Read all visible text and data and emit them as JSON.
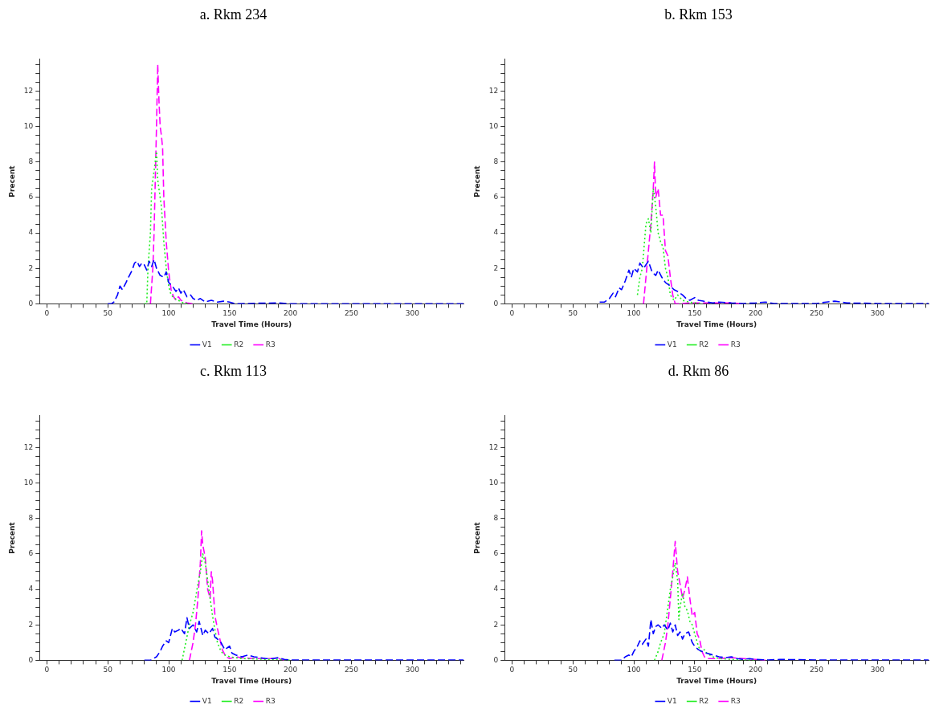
{
  "chart_data": [
    {
      "type": "line",
      "title": "a. Rkm 234",
      "xlabel": "Travel Time (Hours)",
      "ylabel": "Precent",
      "xlim": [
        -6,
        342
      ],
      "ylim": [
        0,
        13.8
      ],
      "xticks": [
        0,
        {
          "value": 10,
          "label": null
        },
        {
          "value": 20,
          "label": null
        },
        {
          "value": 30,
          "label": null
        },
        {
          "value": 40,
          "label": null
        },
        50,
        {
          "value": 60,
          "label": null
        },
        {
          "value": 70,
          "label": null
        },
        {
          "value": 80,
          "label": null
        },
        {
          "value": 90,
          "label": null
        },
        100,
        {
          "value": 110,
          "label": null
        },
        {
          "value": 120,
          "label": null
        },
        {
          "value": 130,
          "label": null
        },
        {
          "value": 140,
          "label": null
        },
        150,
        {
          "value": 160,
          "label": null
        },
        {
          "value": 170,
          "label": null
        },
        {
          "value": 180,
          "label": null
        },
        {
          "value": 190,
          "label": null
        },
        200,
        {
          "value": 210,
          "label": null
        },
        {
          "value": 220,
          "label": null
        },
        {
          "value": 230,
          "label": null
        },
        {
          "value": 240,
          "label": null
        },
        250,
        {
          "value": 260,
          "label": null
        },
        {
          "value": 270,
          "label": null
        },
        {
          "value": 280,
          "label": null
        },
        {
          "value": 290,
          "label": null
        },
        300,
        {
          "value": 310,
          "label": null
        },
        {
          "value": 320,
          "label": null
        },
        {
          "value": 330,
          "label": null
        },
        {
          "value": 340,
          "label": null
        }
      ],
      "yticks": [
        0,
        {
          "value": 0.5,
          "label": null
        },
        {
          "value": 1,
          "label": null
        },
        {
          "value": 1.5,
          "label": null
        },
        2,
        {
          "value": 2.5,
          "label": null
        },
        {
          "value": 3,
          "label": null
        },
        {
          "value": 3.5,
          "label": null
        },
        4,
        {
          "value": 4.5,
          "label": null
        },
        {
          "value": 5,
          "label": null
        },
        {
          "value": 5.5,
          "label": null
        },
        6,
        {
          "value": 6.5,
          "label": null
        },
        {
          "value": 7,
          "label": null
        },
        {
          "value": 7.5,
          "label": null
        },
        8,
        {
          "value": 8.5,
          "label": null
        },
        {
          "value": 9,
          "label": null
        },
        {
          "value": 9.5,
          "label": null
        },
        10,
        {
          "value": 10.5,
          "label": null
        },
        {
          "value": 11,
          "label": null
        },
        {
          "value": 11.5,
          "label": null
        },
        12,
        {
          "value": 12.5,
          "label": null
        },
        {
          "value": 13,
          "label": null
        },
        {
          "value": 13.5,
          "label": null
        }
      ],
      "legend": "bottom",
      "grid": false,
      "series": [
        {
          "name": "V1",
          "color": "#0000ff",
          "line_style": "dashed",
          "x": [
            50,
            53,
            55,
            58,
            60,
            62,
            65,
            67,
            70,
            72,
            74,
            76,
            78,
            80,
            82,
            84,
            86,
            88,
            90,
            93,
            96,
            98,
            100,
            103,
            106,
            108,
            110,
            112,
            115,
            118,
            120,
            123,
            126,
            130,
            135,
            140,
            145,
            150,
            155,
            170,
            190,
            200,
            250,
            300,
            342
          ],
          "values": [
            0,
            0,
            0.1,
            0.5,
            1.0,
            0.8,
            1.2,
            1.5,
            1.9,
            2.3,
            2.4,
            2.1,
            2.3,
            2.2,
            1.9,
            2.4,
            2.1,
            2.5,
            2.0,
            1.6,
            1.5,
            1.8,
            1.2,
            1.0,
            0.7,
            0.9,
            0.6,
            0.8,
            0.4,
            0.5,
            0.3,
            0.2,
            0.3,
            0.1,
            0.2,
            0.1,
            0.15,
            0.1,
            0,
            0.03,
            0.05,
            0,
            0,
            0,
            0
          ]
        },
        {
          "name": "R2",
          "color": "#22ee22",
          "line_style": "dotted",
          "x": [
            80,
            82,
            83,
            85,
            86,
            88,
            90,
            91,
            92,
            94,
            96,
            98,
            100,
            102,
            105,
            108,
            110,
            113,
            116
          ],
          "values": [
            0,
            0,
            2.0,
            4,
            6.5,
            7.5,
            8.6,
            7,
            6.5,
            5.5,
            3.5,
            2,
            1.0,
            0.5,
            0.3,
            0.2,
            0.1,
            0.05,
            0
          ]
        },
        {
          "name": "R3",
          "color": "#ff00ff",
          "line_style": "dashed",
          "x": [
            85,
            86,
            87,
            88,
            89,
            90,
            91,
            92,
            93,
            94,
            95,
            96,
            98,
            100,
            102,
            104,
            106,
            108,
            110,
            115,
            120
          ],
          "values": [
            0,
            1,
            2,
            4,
            7,
            10,
            13.5,
            11.5,
            10,
            9.5,
            8.8,
            6,
            3.5,
            1.8,
            0.8,
            0.4,
            0.2,
            0.4,
            0.2,
            0.05,
            0
          ]
        }
      ]
    },
    {
      "type": "line",
      "title": "b. Rkm 153",
      "xlabel": "Travel Time (Hours)",
      "ylabel": "Precent",
      "xlim": [
        -6,
        342
      ],
      "ylim": [
        0,
        13.8
      ],
      "xticks": [
        0,
        {
          "value": 10,
          "label": null
        },
        {
          "value": 20,
          "label": null
        },
        {
          "value": 30,
          "label": null
        },
        {
          "value": 40,
          "label": null
        },
        50,
        {
          "value": 60,
          "label": null
        },
        {
          "value": 70,
          "label": null
        },
        {
          "value": 80,
          "label": null
        },
        {
          "value": 90,
          "label": null
        },
        100,
        {
          "value": 110,
          "label": null
        },
        {
          "value": 120,
          "label": null
        },
        {
          "value": 130,
          "label": null
        },
        {
          "value": 140,
          "label": null
        },
        150,
        {
          "value": 160,
          "label": null
        },
        {
          "value": 170,
          "label": null
        },
        {
          "value": 180,
          "label": null
        },
        {
          "value": 190,
          "label": null
        },
        200,
        {
          "value": 210,
          "label": null
        },
        {
          "value": 220,
          "label": null
        },
        {
          "value": 230,
          "label": null
        },
        {
          "value": 240,
          "label": null
        },
        250,
        {
          "value": 260,
          "label": null
        },
        {
          "value": 270,
          "label": null
        },
        {
          "value": 280,
          "label": null
        },
        {
          "value": 290,
          "label": null
        },
        300,
        {
          "value": 310,
          "label": null
        },
        {
          "value": 320,
          "label": null
        },
        {
          "value": 330,
          "label": null
        },
        {
          "value": 340,
          "label": null
        }
      ],
      "yticks": [
        0,
        {
          "value": 0.5,
          "label": null
        },
        {
          "value": 1,
          "label": null
        },
        {
          "value": 1.5,
          "label": null
        },
        2,
        {
          "value": 2.5,
          "label": null
        },
        {
          "value": 3,
          "label": null
        },
        {
          "value": 3.5,
          "label": null
        },
        4,
        {
          "value": 4.5,
          "label": null
        },
        {
          "value": 5,
          "label": null
        },
        {
          "value": 5.5,
          "label": null
        },
        6,
        {
          "value": 6.5,
          "label": null
        },
        {
          "value": 7,
          "label": null
        },
        {
          "value": 7.5,
          "label": null
        },
        8,
        {
          "value": 8.5,
          "label": null
        },
        {
          "value": 9,
          "label": null
        },
        {
          "value": 9.5,
          "label": null
        },
        10,
        {
          "value": 10.5,
          "label": null
        },
        {
          "value": 11,
          "label": null
        },
        {
          "value": 11.5,
          "label": null
        },
        12,
        {
          "value": 12.5,
          "label": null
        },
        {
          "value": 13,
          "label": null
        },
        {
          "value": 13.5,
          "label": null
        }
      ],
      "legend": "bottom",
      "grid": false,
      "series": [
        {
          "name": "V1",
          "color": "#0000ff",
          "line_style": "dashed",
          "x": [
            72,
            76,
            80,
            83,
            85,
            88,
            90,
            93,
            96,
            98,
            100,
            103,
            105,
            108,
            110,
            112,
            115,
            118,
            120,
            123,
            126,
            130,
            133,
            136,
            140,
            143,
            146,
            150,
            153,
            157,
            160,
            165,
            170,
            180,
            190,
            200,
            208,
            215,
            250,
            258,
            265,
            275,
            300,
            342
          ],
          "values": [
            0.1,
            0.1,
            0.3,
            0.6,
            0.4,
            0.9,
            0.8,
            1.3,
            1.9,
            1.5,
            2.0,
            1.8,
            2.3,
            2.0,
            2.2,
            2.4,
            1.8,
            1.6,
            1.9,
            1.5,
            1.2,
            1.0,
            0.8,
            0.7,
            0.5,
            0.3,
            0.2,
            0.35,
            0.2,
            0.15,
            0.1,
            0.05,
            0.1,
            0.05,
            0.02,
            0.05,
            0.1,
            0.02,
            0.02,
            0.1,
            0.15,
            0.05,
            0.02,
            0.02
          ]
        },
        {
          "name": "R2",
          "color": "#22ee22",
          "line_style": "dotted",
          "x": [
            103,
            105,
            107,
            110,
            112,
            114,
            116,
            118,
            120,
            122,
            124,
            126,
            128,
            130,
            133,
            136,
            140,
            145,
            150,
            155
          ],
          "values": [
            0.5,
            1.5,
            2,
            4.5,
            4.8,
            4,
            6.5,
            5.5,
            4,
            3.5,
            3.2,
            2.0,
            1.5,
            0.5,
            0.2,
            0.5,
            0.2,
            0.1,
            0.05,
            0
          ]
        },
        {
          "name": "R3",
          "color": "#ff00ff",
          "line_style": "dashed",
          "x": [
            108,
            110,
            112,
            114,
            116,
            117,
            118,
            120,
            122,
            124,
            126,
            128,
            130,
            132,
            134,
            138,
            145,
            160,
            180,
            188
          ],
          "values": [
            0,
            1.5,
            3,
            4.5,
            6.5,
            8,
            6,
            6.5,
            5,
            5,
            3,
            2.7,
            1.5,
            0.5,
            0,
            0,
            0.05,
            0.05,
            0.05,
            0
          ]
        }
      ]
    },
    {
      "type": "line",
      "title": "c. Rkm 113",
      "xlabel": "Travel Time (Hours)",
      "ylabel": "Precent",
      "xlim": [
        -6,
        342
      ],
      "ylim": [
        0,
        13.8
      ],
      "xticks": [
        0,
        {
          "value": 10,
          "label": null
        },
        {
          "value": 20,
          "label": null
        },
        {
          "value": 30,
          "label": null
        },
        {
          "value": 40,
          "label": null
        },
        50,
        {
          "value": 60,
          "label": null
        },
        {
          "value": 70,
          "label": null
        },
        {
          "value": 80,
          "label": null
        },
        {
          "value": 90,
          "label": null
        },
        100,
        {
          "value": 110,
          "label": null
        },
        {
          "value": 120,
          "label": null
        },
        {
          "value": 130,
          "label": null
        },
        {
          "value": 140,
          "label": null
        },
        150,
        {
          "value": 160,
          "label": null
        },
        {
          "value": 170,
          "label": null
        },
        {
          "value": 180,
          "label": null
        },
        {
          "value": 190,
          "label": null
        },
        200,
        {
          "value": 210,
          "label": null
        },
        {
          "value": 220,
          "label": null
        },
        {
          "value": 230,
          "label": null
        },
        {
          "value": 240,
          "label": null
        },
        250,
        {
          "value": 260,
          "label": null
        },
        {
          "value": 270,
          "label": null
        },
        {
          "value": 280,
          "label": null
        },
        {
          "value": 290,
          "label": null
        },
        300,
        {
          "value": 310,
          "label": null
        },
        {
          "value": 320,
          "label": null
        },
        {
          "value": 330,
          "label": null
        },
        {
          "value": 340,
          "label": null
        }
      ],
      "yticks": [
        0,
        {
          "value": 0.5,
          "label": null
        },
        {
          "value": 1,
          "label": null
        },
        {
          "value": 1.5,
          "label": null
        },
        2,
        {
          "value": 2.5,
          "label": null
        },
        {
          "value": 3,
          "label": null
        },
        {
          "value": 3.5,
          "label": null
        },
        4,
        {
          "value": 4.5,
          "label": null
        },
        {
          "value": 5,
          "label": null
        },
        {
          "value": 5.5,
          "label": null
        },
        6,
        {
          "value": 6.5,
          "label": null
        },
        {
          "value": 7,
          "label": null
        },
        {
          "value": 7.5,
          "label": null
        },
        8,
        {
          "value": 8.5,
          "label": null
        },
        {
          "value": 9,
          "label": null
        },
        {
          "value": 9.5,
          "label": null
        },
        10,
        {
          "value": 10.5,
          "label": null
        },
        {
          "value": 11,
          "label": null
        },
        {
          "value": 11.5,
          "label": null
        },
        12,
        {
          "value": 12.5,
          "label": null
        },
        {
          "value": 13,
          "label": null
        },
        {
          "value": 13.5,
          "label": null
        }
      ],
      "legend": "bottom",
      "grid": false,
      "series": [
        {
          "name": "V1",
          "color": "#0000ff",
          "line_style": "dashed",
          "x": [
            80,
            85,
            90,
            93,
            95,
            98,
            100,
            103,
            105,
            108,
            110,
            113,
            115,
            117,
            120,
            123,
            125,
            128,
            130,
            133,
            136,
            138,
            140,
            143,
            146,
            150,
            152,
            155,
            160,
            165,
            170,
            175,
            180,
            185,
            190,
            195,
            200,
            210,
            250,
            300,
            342
          ],
          "values": [
            0,
            0,
            0.2,
            0.5,
            0.8,
            1.1,
            1.0,
            1.8,
            1.6,
            1.7,
            1.8,
            1.5,
            2.4,
            1.8,
            2.0,
            1.6,
            2.2,
            1.4,
            1.7,
            1.5,
            1.8,
            1.3,
            1.2,
            1.0,
            0.6,
            0.8,
            0.4,
            0.3,
            0.2,
            0.3,
            0.2,
            0.15,
            0.1,
            0.1,
            0.15,
            0.05,
            0.02,
            0.02,
            0.02,
            0.02,
            0.02
          ]
        },
        {
          "name": "R2",
          "color": "#22ee22",
          "line_style": "dotted",
          "x": [
            111,
            114,
            117,
            120,
            122,
            124,
            126,
            128,
            130,
            132,
            134,
            136,
            138,
            140,
            143,
            146,
            150,
            155,
            160,
            170,
            180,
            190,
            200
          ],
          "values": [
            0,
            1.0,
            2.0,
            2.7,
            3.5,
            4.3,
            5.0,
            6.0,
            5.5,
            4.5,
            3.5,
            2.5,
            1.7,
            1.0,
            0.5,
            0.3,
            0.2,
            0.15,
            0.1,
            0.08,
            0.05,
            0.05,
            0
          ]
        },
        {
          "name": "R3",
          "color": "#ff00ff",
          "line_style": "dashed",
          "x": [
            117,
            120,
            122,
            124,
            126,
            127,
            128,
            130,
            132,
            134,
            135,
            136,
            138,
            140,
            142,
            144,
            147,
            150,
            155,
            160,
            170,
            180,
            190,
            195
          ],
          "values": [
            0,
            1.0,
            2.0,
            3.5,
            5.5,
            7.3,
            6.5,
            5.8,
            4.0,
            3.5,
            5.0,
            4.5,
            2.5,
            1.8,
            1.2,
            0.6,
            0.2,
            0.1,
            0.2,
            0.15,
            0.1,
            0.1,
            0.1,
            0
          ]
        }
      ]
    },
    {
      "type": "line",
      "title": "d. Rkm 86",
      "xlabel": "Travel Time (Hours)",
      "ylabel": "Precent",
      "xlim": [
        -6,
        342
      ],
      "ylim": [
        0,
        13.8
      ],
      "xticks": [
        0,
        {
          "value": 10,
          "label": null
        },
        {
          "value": 20,
          "label": null
        },
        {
          "value": 30,
          "label": null
        },
        {
          "value": 40,
          "label": null
        },
        50,
        {
          "value": 60,
          "label": null
        },
        {
          "value": 70,
          "label": null
        },
        {
          "value": 80,
          "label": null
        },
        {
          "value": 90,
          "label": null
        },
        100,
        {
          "value": 110,
          "label": null
        },
        {
          "value": 120,
          "label": null
        },
        {
          "value": 130,
          "label": null
        },
        {
          "value": 140,
          "label": null
        },
        150,
        {
          "value": 160,
          "label": null
        },
        {
          "value": 170,
          "label": null
        },
        {
          "value": 180,
          "label": null
        },
        {
          "value": 190,
          "label": null
        },
        200,
        {
          "value": 210,
          "label": null
        },
        {
          "value": 220,
          "label": null
        },
        {
          "value": 230,
          "label": null
        },
        {
          "value": 240,
          "label": null
        },
        250,
        {
          "value": 260,
          "label": null
        },
        {
          "value": 270,
          "label": null
        },
        {
          "value": 280,
          "label": null
        },
        {
          "value": 290,
          "label": null
        },
        300,
        {
          "value": 310,
          "label": null
        },
        {
          "value": 320,
          "label": null
        },
        {
          "value": 330,
          "label": null
        },
        {
          "value": 340,
          "label": null
        }
      ],
      "yticks": [
        0,
        {
          "value": 0.5,
          "label": null
        },
        {
          "value": 1,
          "label": null
        },
        {
          "value": 1.5,
          "label": null
        },
        2,
        {
          "value": 2.5,
          "label": null
        },
        {
          "value": 3,
          "label": null
        },
        {
          "value": 3.5,
          "label": null
        },
        4,
        {
          "value": 4.5,
          "label": null
        },
        {
          "value": 5,
          "label": null
        },
        {
          "value": 5.5,
          "label": null
        },
        6,
        {
          "value": 6.5,
          "label": null
        },
        {
          "value": 7,
          "label": null
        },
        {
          "value": 7.5,
          "label": null
        },
        8,
        {
          "value": 8.5,
          "label": null
        },
        {
          "value": 9,
          "label": null
        },
        {
          "value": 9.5,
          "label": null
        },
        10,
        {
          "value": 10.5,
          "label": null
        },
        {
          "value": 11,
          "label": null
        },
        {
          "value": 11.5,
          "label": null
        },
        12,
        {
          "value": 12.5,
          "label": null
        },
        {
          "value": 13,
          "label": null
        },
        {
          "value": 13.5,
          "label": null
        }
      ],
      "legend": "bottom",
      "grid": false,
      "series": [
        {
          "name": "V1",
          "color": "#0000ff",
          "line_style": "dashed",
          "x": [
            84,
            90,
            93,
            96,
            98,
            100,
            103,
            105,
            107,
            110,
            112,
            114,
            116,
            118,
            120,
            123,
            125,
            128,
            130,
            132,
            134,
            136,
            138,
            140,
            142,
            145,
            148,
            150,
            153,
            156,
            160,
            165,
            170,
            175,
            180,
            185,
            190,
            195,
            200,
            210,
            220,
            250,
            300,
            342
          ],
          "values": [
            0,
            0,
            0.2,
            0.3,
            0.2,
            0.5,
            0.8,
            1.1,
            0.9,
            1.2,
            0.8,
            2.3,
            1.5,
            1.9,
            2.0,
            1.8,
            2.0,
            1.7,
            2.1,
            1.6,
            2.0,
            1.4,
            1.6,
            1.2,
            1.5,
            1.6,
            1.0,
            0.8,
            0.6,
            0.5,
            0.4,
            0.3,
            0.2,
            0.15,
            0.2,
            0.1,
            0.05,
            0.1,
            0.05,
            0.02,
            0.05,
            0.02,
            0.02,
            0.02
          ]
        },
        {
          "name": "R2",
          "color": "#22ee22",
          "line_style": "dotted",
          "x": [
            117,
            120,
            122,
            125,
            127,
            130,
            132,
            134,
            136,
            137,
            138,
            140,
            142,
            144,
            146,
            148,
            150,
            153,
            155,
            158,
            160,
            165,
            170,
            180,
            190,
            200
          ],
          "values": [
            0,
            0.5,
            1.0,
            1.5,
            2.5,
            4.0,
            4.7,
            5.5,
            4.5,
            2.3,
            3.0,
            3.8,
            3.0,
            2.8,
            2.2,
            2.0,
            1.5,
            0.8,
            0.5,
            0.6,
            0.4,
            0.2,
            0.1,
            0.05,
            0.02,
            0
          ]
        },
        {
          "name": "R3",
          "color": "#ff00ff",
          "line_style": "dashed",
          "x": [
            123,
            126,
            128,
            130,
            132,
            134,
            136,
            138,
            140,
            142,
            144,
            146,
            148,
            150,
            152,
            154,
            156,
            158,
            160,
            170,
            180,
            190,
            200,
            208
          ],
          "values": [
            0,
            1.0,
            2.0,
            3.5,
            5.0,
            6.7,
            5.0,
            4.3,
            3.5,
            4.0,
            4.7,
            3.5,
            2.5,
            2.7,
            1.5,
            1.2,
            0.5,
            0.2,
            0.1,
            0.1,
            0.15,
            0.1,
            0.05,
            0
          ]
        }
      ]
    }
  ]
}
